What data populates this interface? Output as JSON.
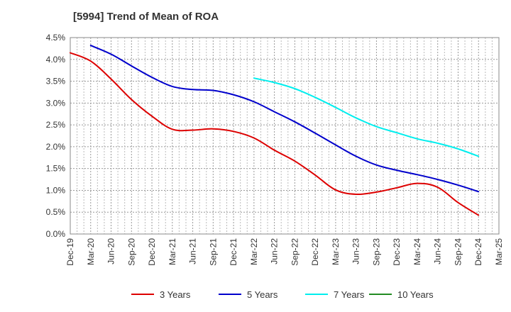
{
  "chart_data": {
    "type": "line",
    "title": "[5994]  Trend of Mean of ROA",
    "xlabel": "",
    "ylabel": "",
    "x": [
      "Dec-19",
      "Mar-20",
      "Jun-20",
      "Sep-20",
      "Dec-20",
      "Mar-21",
      "Jun-21",
      "Sep-21",
      "Dec-21",
      "Mar-22",
      "Jun-22",
      "Sep-22",
      "Dec-22",
      "Mar-23",
      "Jun-23",
      "Sep-23",
      "Dec-23",
      "Mar-24",
      "Jun-24",
      "Sep-24",
      "Dec-24",
      "Mar-25"
    ],
    "ylim": [
      0,
      4.5
    ],
    "yticks": [
      "0.0%",
      "0.5%",
      "1.0%",
      "1.5%",
      "2.0%",
      "2.5%",
      "3.0%",
      "3.5%",
      "4.0%",
      "4.5%"
    ],
    "grid": true,
    "legend_position": "bottom",
    "series": [
      {
        "name": "3 Years",
        "color": "#dd0000",
        "values": [
          4.15,
          3.96,
          3.55,
          3.08,
          2.7,
          2.4,
          2.38,
          2.41,
          2.35,
          2.2,
          1.92,
          1.67,
          1.35,
          1.01,
          0.91,
          0.96,
          1.06,
          1.16,
          1.07,
          0.72,
          0.43,
          null
        ]
      },
      {
        "name": "5 Years",
        "color": "#0000cc",
        "values": [
          null,
          4.32,
          4.12,
          3.85,
          3.59,
          3.38,
          3.31,
          3.29,
          3.19,
          3.03,
          2.8,
          2.57,
          2.31,
          2.04,
          1.78,
          1.58,
          1.46,
          1.36,
          1.25,
          1.12,
          0.97,
          null
        ]
      },
      {
        "name": "7 Years",
        "color": "#00eeee",
        "values": [
          null,
          null,
          null,
          null,
          null,
          null,
          null,
          null,
          null,
          3.57,
          3.47,
          3.33,
          3.13,
          2.9,
          2.66,
          2.46,
          2.32,
          2.18,
          2.08,
          1.95,
          1.78,
          null
        ]
      },
      {
        "name": "10 Years",
        "color": "#228b22",
        "values": [
          null,
          null,
          null,
          null,
          null,
          null,
          null,
          null,
          null,
          null,
          null,
          null,
          null,
          null,
          null,
          null,
          null,
          null,
          null,
          null,
          null,
          null
        ]
      }
    ]
  }
}
